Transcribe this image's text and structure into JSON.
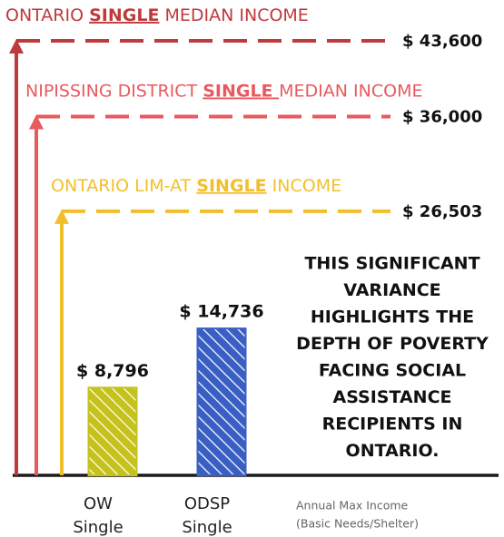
{
  "chart_data": {
    "type": "bar",
    "categories": [
      [
        "OW",
        "Single"
      ],
      [
        "ODSP",
        "Single"
      ]
    ],
    "values": [
      8796,
      14736
    ],
    "value_labels": [
      "$ 8,796",
      "$ 14,736"
    ],
    "colors": [
      "#c5c21c",
      "#3a5fc4"
    ],
    "x_label": [
      "Annual Max Income",
      "(Basic Needs/Shelter)"
    ],
    "reference_lines": [
      {
        "label": [
          "ONTARIO ",
          "SINGLE",
          " MEDIAN INCOME"
        ],
        "value": 43600,
        "value_label": "$ 43,600",
        "color": "#bf3a3c"
      },
      {
        "label": [
          "NIPISSING DISTRICT ",
          "SINGLE ",
          "MEDIAN INCOME"
        ],
        "value": 36000,
        "value_label": "$ 36,000",
        "color": "#e85a5e"
      },
      {
        "label": [
          "ONTARIO LIM-AT ",
          "SINGLE",
          "  INCOME"
        ],
        "value": 26503,
        "value_label": "$ 26,503",
        "color": "#f2bf2c"
      }
    ],
    "annotation": [
      "THIS SIGNIFICANT",
      "VARIANCE",
      "HIGHLIGHTS THE",
      "DEPTH OF POVERTY",
      "FACING SOCIAL",
      "ASSISTANCE",
      "RECIPIENTS IN",
      "ONTARIO."
    ]
  }
}
